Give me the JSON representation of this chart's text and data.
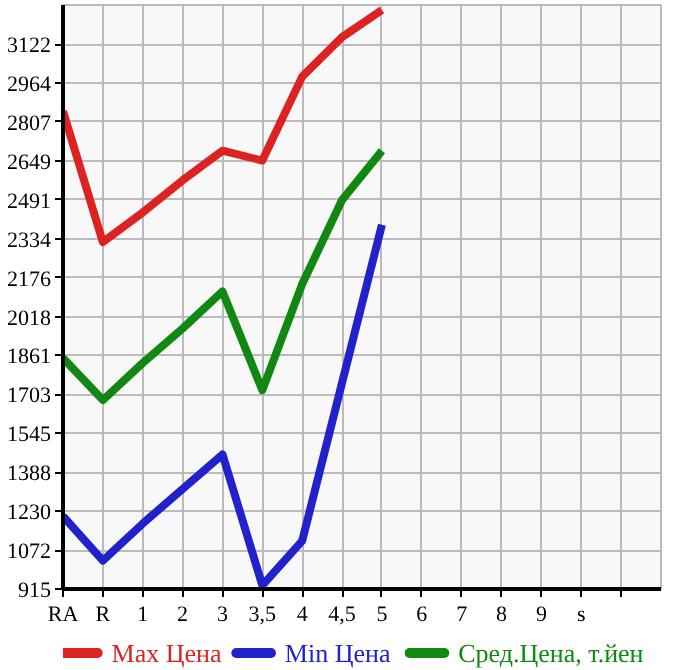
{
  "chart_data": {
    "type": "line",
    "categories": [
      "RA",
      "R",
      "1",
      "2",
      "3",
      "3,5",
      "4",
      "4,5",
      "5",
      "6",
      "7",
      "8",
      "9",
      "s",
      null
    ],
    "series": [
      {
        "name": "Max Цена",
        "color": "#dd2222",
        "values": [
          2850,
          2320,
          2440,
          2570,
          2690,
          2650,
          2990,
          3150,
          3260,
          null,
          null,
          null,
          null,
          null,
          null
        ]
      },
      {
        "name": "Min Цена",
        "color": "#2222cc",
        "values": [
          1210,
          1030,
          1180,
          1320,
          1460,
          930,
          1110,
          1750,
          2390,
          null,
          null,
          null,
          null,
          null,
          null
        ]
      },
      {
        "name": "Сред.Цена, т.йен",
        "color": "#118811",
        "values": [
          1850,
          1680,
          1830,
          1970,
          2120,
          1720,
          2150,
          2490,
          2690,
          null,
          null,
          null,
          null,
          null,
          null
        ]
      }
    ],
    "ylim": [
      915,
      3280
    ],
    "yticks": [
      915,
      1072,
      1230,
      1388,
      1545,
      1703,
      1861,
      2018,
      2176,
      2334,
      2491,
      2649,
      2807,
      2964,
      3122
    ],
    "grid": true,
    "legend": "bottom",
    "marker": "none",
    "line_style": "solid"
  }
}
